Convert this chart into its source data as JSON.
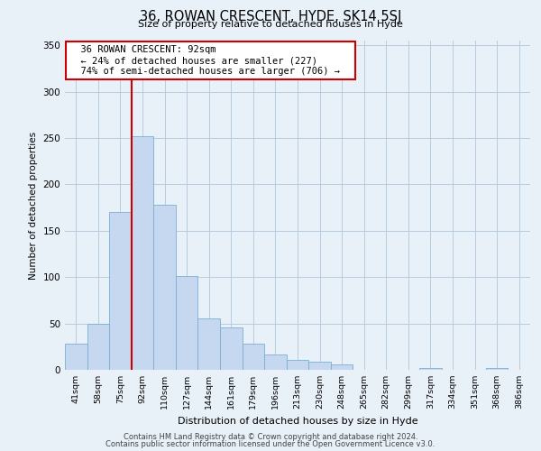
{
  "title": "36, ROWAN CRESCENT, HYDE, SK14 5SJ",
  "subtitle": "Size of property relative to detached houses in Hyde",
  "xlabel": "Distribution of detached houses by size in Hyde",
  "ylabel": "Number of detached properties",
  "footer_line1": "Contains HM Land Registry data © Crown copyright and database right 2024.",
  "footer_line2": "Contains public sector information licensed under the Open Government Licence v3.0.",
  "annotation_line1": "36 ROWAN CRESCENT: 92sqm",
  "annotation_line2": "← 24% of detached houses are smaller (227)",
  "annotation_line3": "74% of semi-detached houses are larger (706) →",
  "bin_labels": [
    "41sqm",
    "58sqm",
    "75sqm",
    "92sqm",
    "110sqm",
    "127sqm",
    "144sqm",
    "161sqm",
    "179sqm",
    "196sqm",
    "213sqm",
    "230sqm",
    "248sqm",
    "265sqm",
    "282sqm",
    "299sqm",
    "317sqm",
    "334sqm",
    "351sqm",
    "368sqm",
    "386sqm"
  ],
  "bar_heights": [
    28,
    50,
    170,
    252,
    178,
    101,
    55,
    46,
    28,
    17,
    11,
    9,
    6,
    0,
    0,
    0,
    2,
    0,
    0,
    2,
    0
  ],
  "bar_color": "#c5d8f0",
  "bar_edge_color": "#7bafd4",
  "vline_x": 3,
  "vline_color": "#cc0000",
  "background_color": "#e8f0f8",
  "plot_bg_color": "#e8f0f8",
  "ylim": [
    0,
    355
  ],
  "yticks": [
    0,
    50,
    100,
    150,
    200,
    250,
    300,
    350
  ],
  "annotation_box_color": "#ffffff",
  "annotation_box_edge": "#cc0000"
}
